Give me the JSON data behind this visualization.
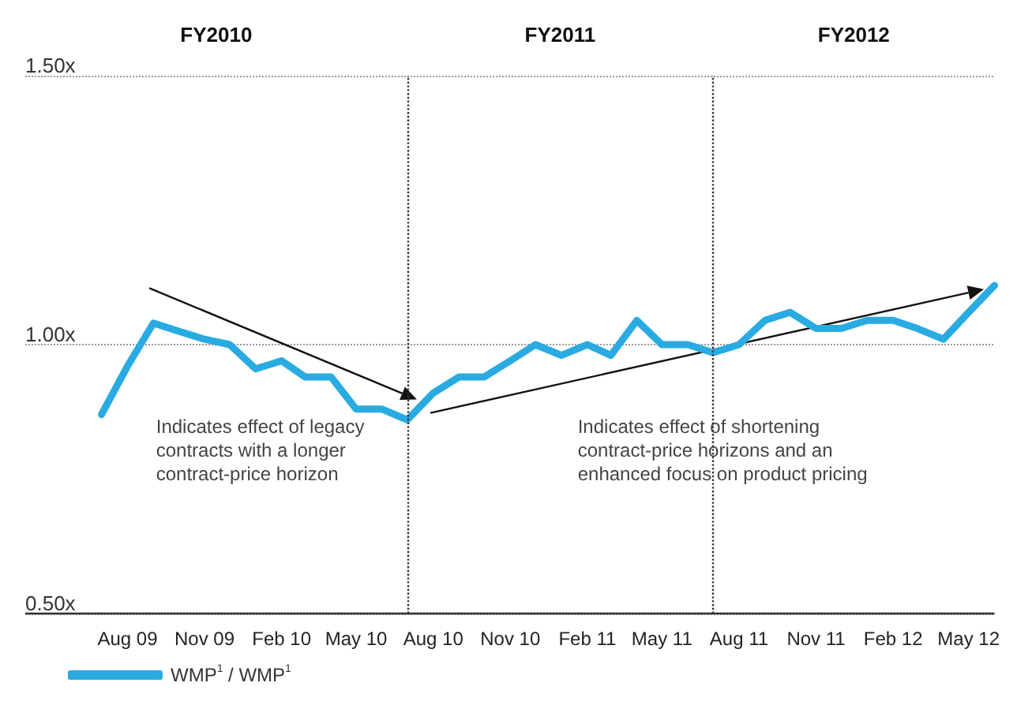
{
  "chart_data": {
    "type": "line",
    "x": [
      "2009-07",
      "2009-08",
      "2009-09",
      "2009-10",
      "2009-11",
      "2009-12",
      "2010-01",
      "2010-02",
      "2010-03",
      "2010-04",
      "2010-05",
      "2010-06",
      "2010-07",
      "2010-08",
      "2010-09",
      "2010-10",
      "2010-11",
      "2010-12",
      "2011-01",
      "2011-02",
      "2011-03",
      "2011-04",
      "2011-05",
      "2011-06",
      "2011-07",
      "2011-08",
      "2011-09",
      "2011-10",
      "2011-11",
      "2011-12",
      "2012-01",
      "2012-02",
      "2012-03",
      "2012-04",
      "2012-05",
      "2012-06"
    ],
    "series": [
      {
        "name": "WMP$^{1}$ / WMP$^{1}$",
        "color": "#29abe2",
        "values": [
          0.87,
          0.96,
          1.04,
          1.025,
          1.01,
          1.0,
          0.955,
          0.97,
          0.94,
          0.94,
          0.88,
          0.88,
          0.86,
          0.91,
          0.94,
          0.94,
          0.97,
          1.0,
          0.98,
          1.0,
          0.98,
          1.045,
          1.0,
          1.0,
          0.985,
          1.0,
          1.045,
          1.06,
          1.03,
          1.03,
          1.045,
          1.045,
          1.03,
          1.01,
          1.06,
          1.11
        ]
      }
    ],
    "xlim": [
      "2009-04",
      "2012-06"
    ],
    "xticks": [
      {
        "value": "2009-08",
        "label": "Aug 09"
      },
      {
        "value": "2009-11",
        "label": "Nov 09"
      },
      {
        "value": "2010-02",
        "label": "Feb 10"
      },
      {
        "value": "2010-05",
        "label": "May 10"
      },
      {
        "value": "2010-08",
        "label": "Aug 10"
      },
      {
        "value": "2010-11",
        "label": "Nov 10"
      },
      {
        "value": "2011-02",
        "label": "Feb 11"
      },
      {
        "value": "2011-05",
        "label": "May 11"
      },
      {
        "value": "2011-08",
        "label": "Aug 11"
      },
      {
        "value": "2011-11",
        "label": "Nov 11"
      },
      {
        "value": "2012-02",
        "label": "Feb 12"
      },
      {
        "value": "2012-05",
        "label": "May 12"
      }
    ],
    "ylim": [
      0.5,
      1.5
    ],
    "yticks": [
      {
        "value": 0.5,
        "label": "0.50x"
      },
      {
        "value": 1.0,
        "label": "1.00x"
      },
      {
        "value": 1.5,
        "label": "1.50x"
      }
    ],
    "grid": "y",
    "legend": "bottom left",
    "marker": "none",
    "line_style": "solid",
    "ref_lines": [
      {
        "axis": "x",
        "value": "2010-07",
        "color": "#333333",
        "line_style": "dotted"
      },
      {
        "axis": "x",
        "value": "2011-07",
        "color": "#333333",
        "line_style": "dotted"
      }
    ],
    "annotations": [
      "FY2010",
      "FY2011",
      "FY2012",
      "Indicates effect of legacy\ncontracts with a longer\ncontract-price horizon",
      "Indicates effect of shortening\ncontract-price horizons and an\nenhanced focus on product pricing"
    ]
  }
}
